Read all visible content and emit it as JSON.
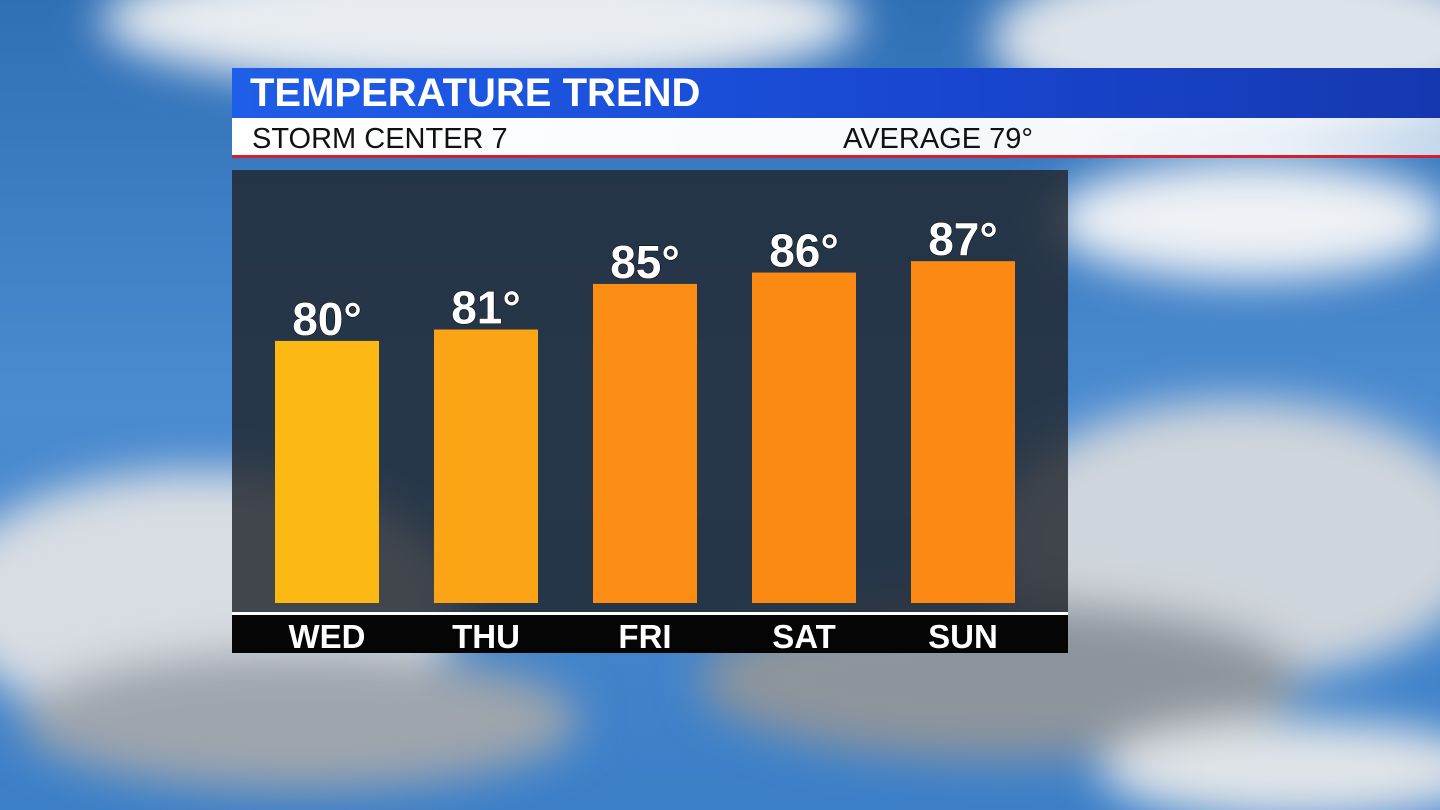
{
  "chart_data": {
    "type": "bar",
    "title": "TEMPERATURE TREND",
    "subtitle": "STORM CENTER 7",
    "annotation": "AVERAGE 79°",
    "categories": [
      "WED",
      "THU",
      "FRI",
      "SAT",
      "SUN"
    ],
    "values": [
      80,
      81,
      85,
      86,
      87
    ],
    "value_labels": [
      "80°",
      "81°",
      "85°",
      "86°",
      "87°"
    ],
    "colors": [
      "#fdb913",
      "#fba516",
      "#fb8c14",
      "#fb8a13",
      "#fb8914"
    ],
    "ylim": [
      57,
      95
    ]
  }
}
